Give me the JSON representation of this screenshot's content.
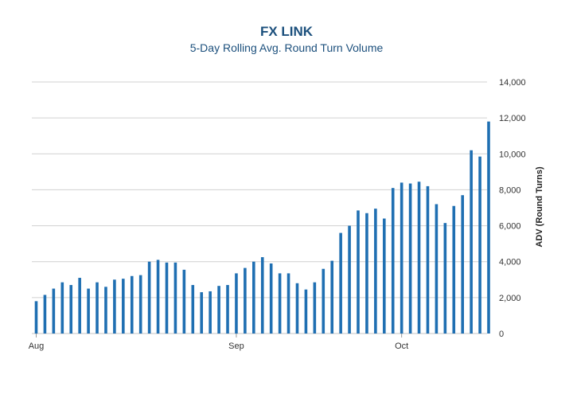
{
  "chart_data": {
    "type": "bar",
    "title": "FX LINK",
    "subtitle": "5-Day Rolling Avg. Round Turn Volume",
    "xlabel": "",
    "ylabel": "ADV (Round Turns)",
    "ylim": [
      0,
      14000
    ],
    "yticks": [
      "0",
      "2,000",
      "4,000",
      "6,000",
      "8,000",
      "10,000",
      "12,000",
      "14,000"
    ],
    "y_axis_side": "right",
    "grid": true,
    "legend": "none",
    "bar_color": "#1f6fb2",
    "grid_color": "#d0d0d0",
    "x_ticks": [
      {
        "label": "Aug",
        "index": 0
      },
      {
        "label": "Sep",
        "index": 23
      },
      {
        "label": "Oct",
        "index": 42
      }
    ],
    "values": [
      1800,
      2150,
      2500,
      2850,
      2700,
      3100,
      2500,
      2850,
      2600,
      3000,
      3050,
      3200,
      3250,
      4000,
      4100,
      3950,
      3950,
      3550,
      2700,
      2300,
      2350,
      2650,
      2700,
      3350,
      3650,
      4000,
      4250,
      3900,
      3350,
      3350,
      2800,
      2450,
      2850,
      3600,
      4050,
      5600,
      6000,
      6850,
      6700,
      6950,
      6400,
      8100,
      8400,
      8350,
      8450,
      8200,
      7200,
      6150,
      7100,
      7700,
      10200,
      9850,
      11800
    ]
  }
}
